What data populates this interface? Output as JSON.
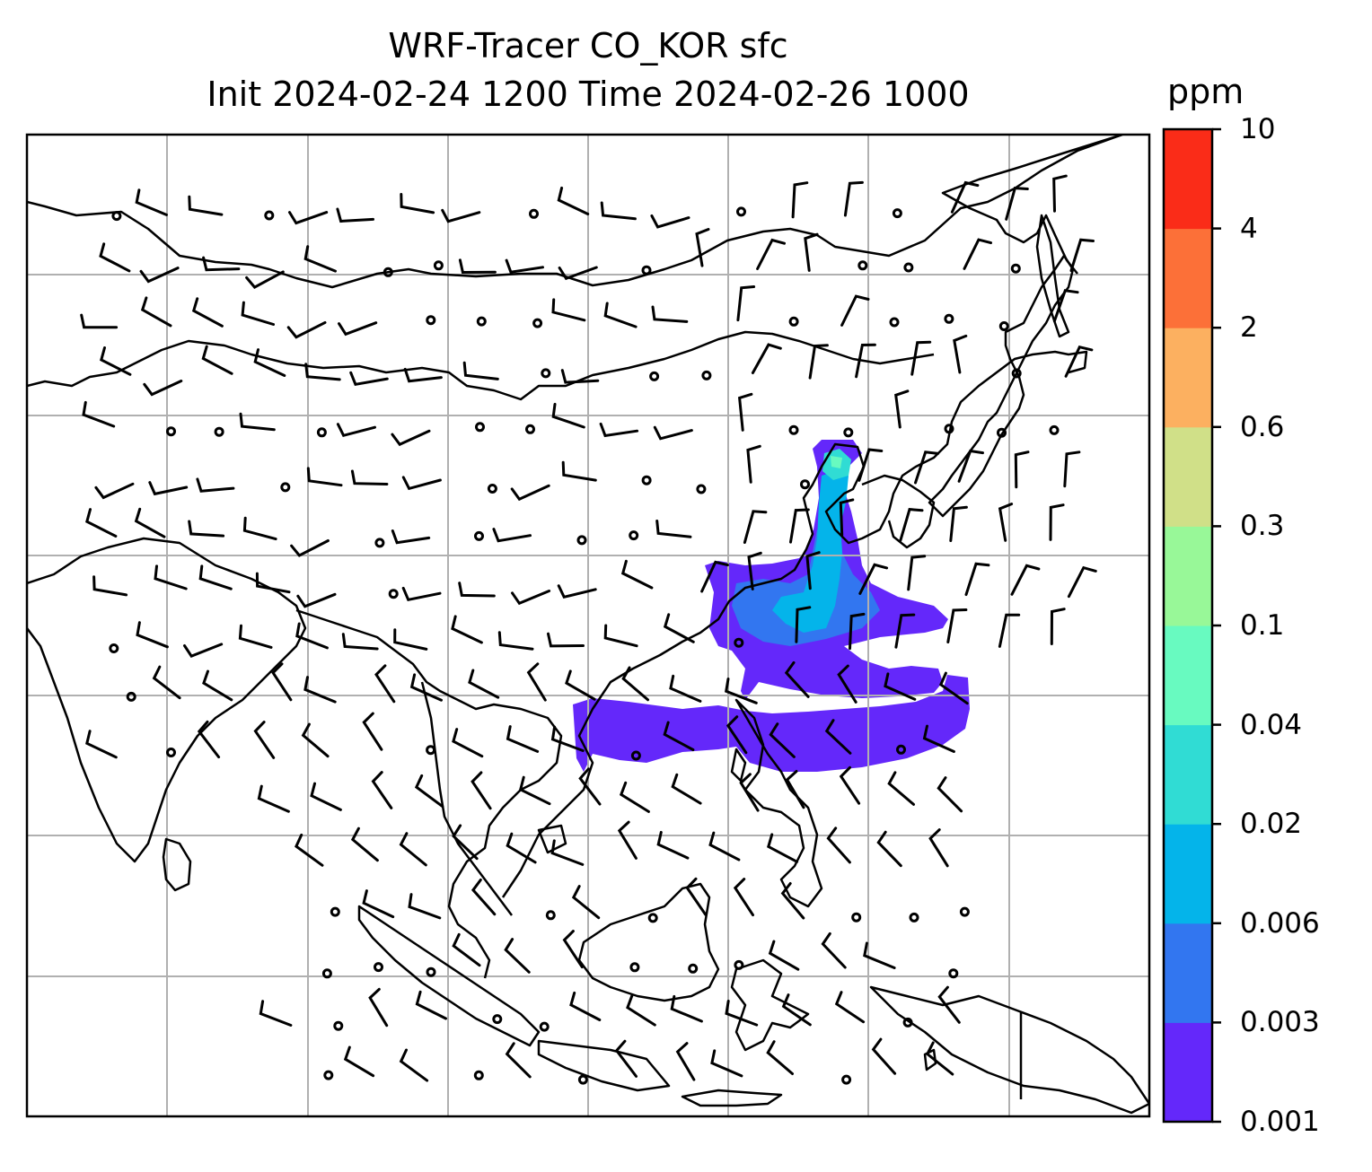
{
  "title": {
    "line1": "WRF-Tracer CO_KOR sfc",
    "line2": "Init 2024-02-24 1200 Time 2024-02-26 1000"
  },
  "colorbar": {
    "unit": "ppm",
    "levels": [
      "0.001",
      "0.003",
      "0.006",
      "0.02",
      "0.04",
      "0.1",
      "0.3",
      "0.6",
      "2",
      "4",
      "10"
    ],
    "colors": [
      "#6428fa",
      "#3276f0",
      "#04b4ea",
      "#30dcd4",
      "#68fac0",
      "#98f898",
      "#d0e088",
      "#fcb060",
      "#fc7038",
      "#fa2c18"
    ]
  },
  "map": {
    "frame_color": "#000000",
    "grid_color": "#b0b0b0",
    "coastline_color": "#000000"
  }
}
